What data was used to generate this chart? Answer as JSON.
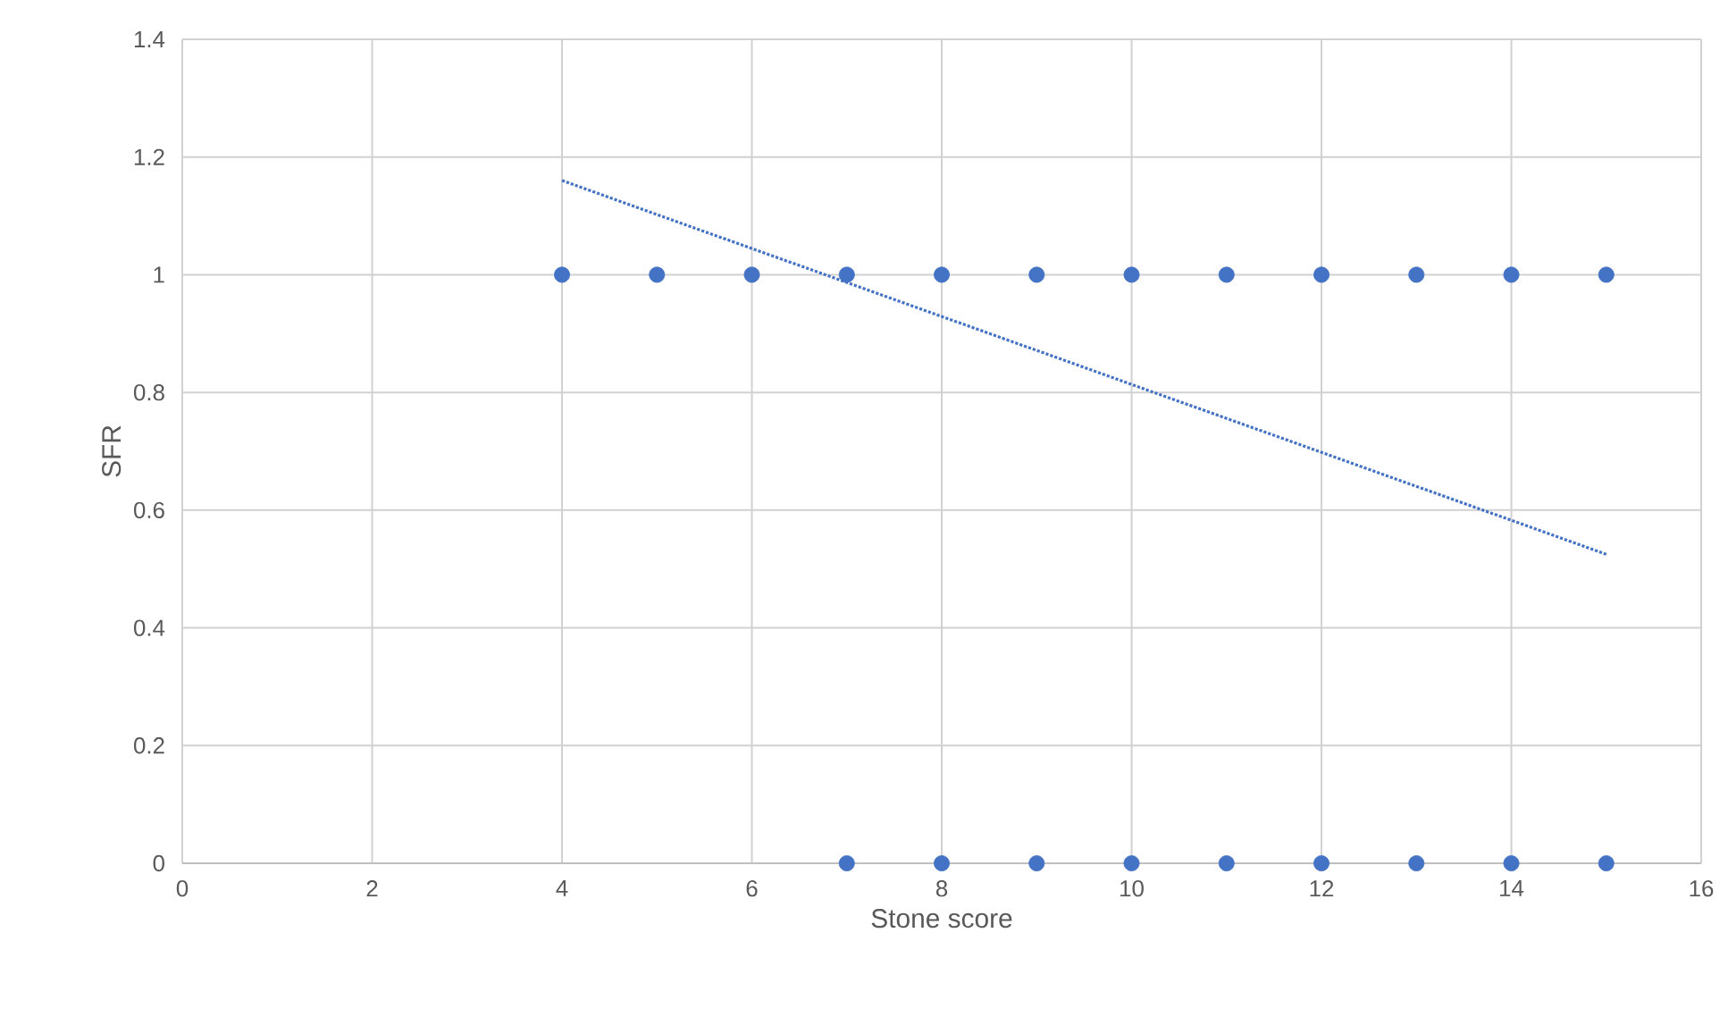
{
  "chart_data": {
    "type": "scatter",
    "xlabel": "Stone score",
    "ylabel": "SFR",
    "xlim": [
      0,
      16
    ],
    "ylim": [
      0,
      1.4
    ],
    "xticks": [
      0,
      2,
      4,
      6,
      8,
      10,
      12,
      14,
      16
    ],
    "yticks": [
      0,
      0.2,
      0.4,
      0.6,
      0.8,
      1,
      1.2,
      1.4
    ],
    "grid": true,
    "marker": "circle",
    "series": [
      {
        "color": "#4472c4",
        "x": [
          4,
          5,
          6,
          7,
          8,
          9,
          10,
          11,
          12,
          13,
          14,
          15
        ],
        "values": [
          1,
          1,
          1,
          1,
          1,
          1,
          1,
          1,
          1,
          1,
          1,
          1
        ]
      },
      {
        "color": "#4472c4",
        "x": [
          7,
          8,
          9,
          10,
          11,
          12,
          13,
          14,
          15
        ],
        "values": [
          0,
          0,
          0,
          0,
          0,
          0,
          0,
          0,
          0
        ]
      },
      {
        "type": "line",
        "color": "#4472c4",
        "marker": "none",
        "line_style": "dotted",
        "x": [
          4,
          15
        ],
        "values": [
          1.16,
          0.525
        ]
      }
    ]
  }
}
